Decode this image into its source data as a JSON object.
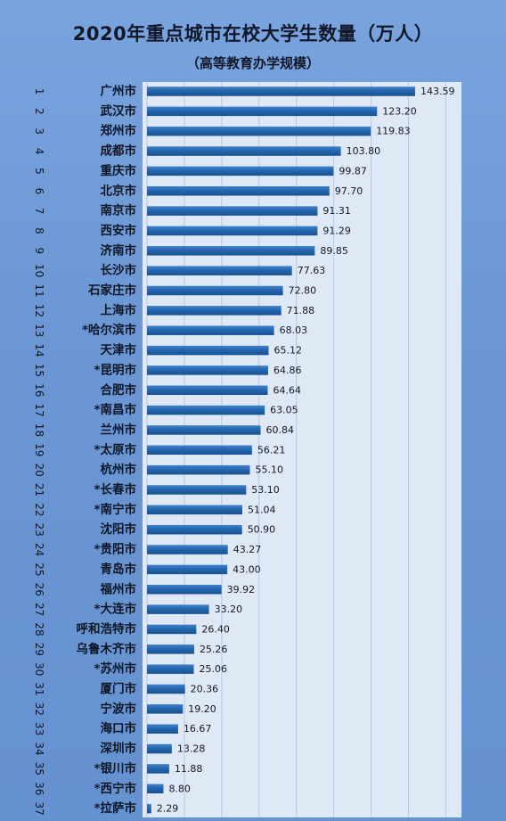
{
  "chart_data": {
    "type": "bar",
    "orientation": "horizontal",
    "title": "2020年重点城市在校大学生数量（万人）",
    "subtitle": "（高等教育办学规模）",
    "ranks": [
      "1",
      "2",
      "3",
      "4",
      "5",
      "6",
      "7",
      "8",
      "9",
      "10",
      "11",
      "12",
      "13",
      "14",
      "15",
      "16",
      "17",
      "18",
      "19",
      "20",
      "21",
      "22",
      "23",
      "24",
      "25",
      "26",
      "27",
      "28",
      "29",
      "30",
      "31",
      "32",
      "33",
      "34",
      "35",
      "36",
      "37"
    ],
    "categories": [
      "广州市",
      "武汉市",
      "郑州市",
      "成都市",
      "重庆市",
      "北京市",
      "南京市",
      "西安市",
      "济南市",
      "长沙市",
      "石家庄市",
      "上海市",
      "*哈尔滨市",
      "天津市",
      "*昆明市",
      "合肥市",
      "*南昌市",
      "兰州市",
      "*太原市",
      "杭州市",
      "*长春市",
      "*南宁市",
      "沈阳市",
      "*贵阳市",
      "青岛市",
      "福州市",
      "*大连市",
      "呼和浩特市",
      "乌鲁木齐市",
      "*苏州市",
      "厦门市",
      "宁波市",
      "海口市",
      "深圳市",
      "*银川市",
      "*西宁市",
      "*拉萨市"
    ],
    "values": [
      143.59,
      123.2,
      119.83,
      103.8,
      99.87,
      97.7,
      91.31,
      91.29,
      89.85,
      77.63,
      72.8,
      71.88,
      68.03,
      65.12,
      64.86,
      64.64,
      63.05,
      60.84,
      56.21,
      55.1,
      53.1,
      51.04,
      50.9,
      43.27,
      43.0,
      39.92,
      33.2,
      26.4,
      25.26,
      25.06,
      20.36,
      19.2,
      16.67,
      13.28,
      11.88,
      8.8,
      2.29
    ],
    "value_labels": [
      "143.59",
      "123.20",
      "119.83",
      "103.80",
      "99.87",
      "97.70",
      "91.31",
      "91.29",
      "89.85",
      "77.63",
      "72.80",
      "71.88",
      "68.03",
      "65.12",
      "64.86",
      "64.64",
      "63.05",
      "60.84",
      "56.21",
      "55.10",
      "53.10",
      "51.04",
      "50.90",
      "43.27",
      "43.00",
      "39.92",
      "33.20",
      "26.40",
      "25.26",
      "25.06",
      "20.36",
      "19.20",
      "16.67",
      "13.28",
      "11.88",
      "8.80",
      "2.29"
    ],
    "xlim": [
      0,
      160
    ],
    "grid": true,
    "legend": "none",
    "colors": {
      "background": "#6f9ad6",
      "plot_area": "#dfe8f5",
      "gridline": "#b9c8de",
      "bar": "#1f5fa8",
      "bar_highlight": "#3b7cc4"
    }
  }
}
